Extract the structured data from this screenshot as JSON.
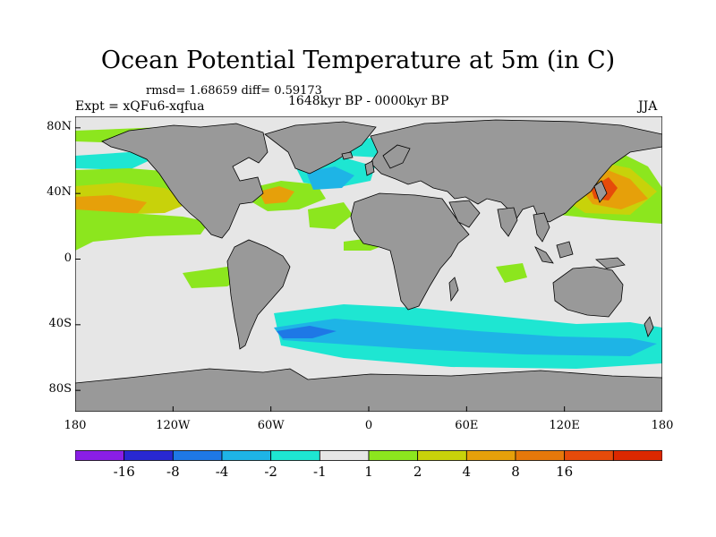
{
  "title": "Ocean Potential Temperature at 5m (in C)",
  "stats": "rmsd= 1.68659 diff= 0.59173",
  "expt": "Expt = xQFu6-xqfua",
  "period": "1648kyr BP - 0000kyr BP",
  "season": "JJA",
  "colors": {
    "land": "#999999",
    "neutral": "#e6e6e6",
    "coast": "#000000"
  },
  "lat_ticks": [
    {
      "value": 80,
      "label": "80N"
    },
    {
      "value": 40,
      "label": "40N"
    },
    {
      "value": 0,
      "label": "0"
    },
    {
      "value": -40,
      "label": "40S"
    },
    {
      "value": -80,
      "label": "80S"
    }
  ],
  "lon_ticks": [
    {
      "value": -180,
      "label": "180"
    },
    {
      "value": -120,
      "label": "120W"
    },
    {
      "value": -60,
      "label": "60W"
    },
    {
      "value": 0,
      "label": "0"
    },
    {
      "value": 60,
      "label": "60E"
    },
    {
      "value": 120,
      "label": "120E"
    },
    {
      "value": 180,
      "label": "180"
    }
  ],
  "colorbar": {
    "colors": [
      "#8a1ee6",
      "#2828d2",
      "#1e78e6",
      "#1eb4e6",
      "#1ee6d2",
      "#e6e6e6",
      "#8ce61e",
      "#c8d20a",
      "#e6a00a",
      "#e6780a",
      "#e64b0a",
      "#dc2800"
    ],
    "labels": [
      "-16",
      "-8",
      "-4",
      "-2",
      "-1",
      "1",
      "2",
      "4",
      "8",
      "16"
    ]
  }
}
